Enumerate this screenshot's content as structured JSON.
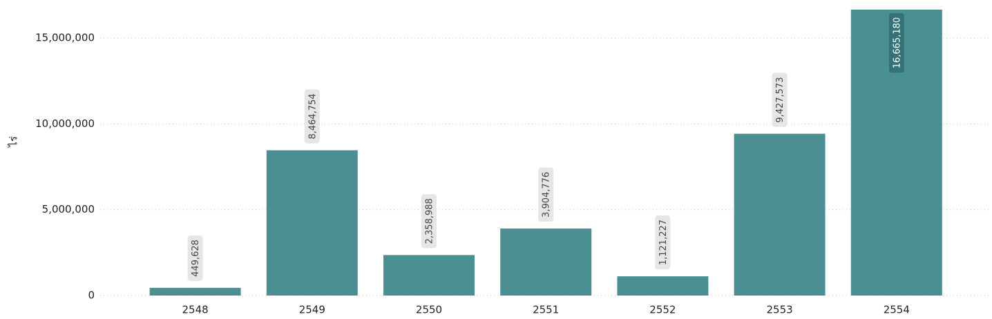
{
  "chart_data": {
    "type": "bar",
    "y_label": "ไร่",
    "categories": [
      "2548",
      "2549",
      "2550",
      "2551",
      "2552",
      "2553",
      "2554"
    ],
    "values": [
      449628,
      8464754,
      2358988,
      3904776,
      1121227,
      9427573,
      16665180
    ],
    "value_labels": [
      "449,628",
      "8,464,754",
      "2,358,988",
      "3,904,776",
      "1,121,227",
      "9,427,573",
      "16,665,180"
    ],
    "color": "#4a9093",
    "ylim": [
      0,
      16700000
    ],
    "yticks": [
      0,
      {
        "value": 5000000,
        "label": "5,000,000"
      },
      {
        "value": 10000000,
        "label": "10,000,000"
      },
      {
        "value": 15000000,
        "label": "15,000,000"
      }
    ],
    "grid": true
  }
}
